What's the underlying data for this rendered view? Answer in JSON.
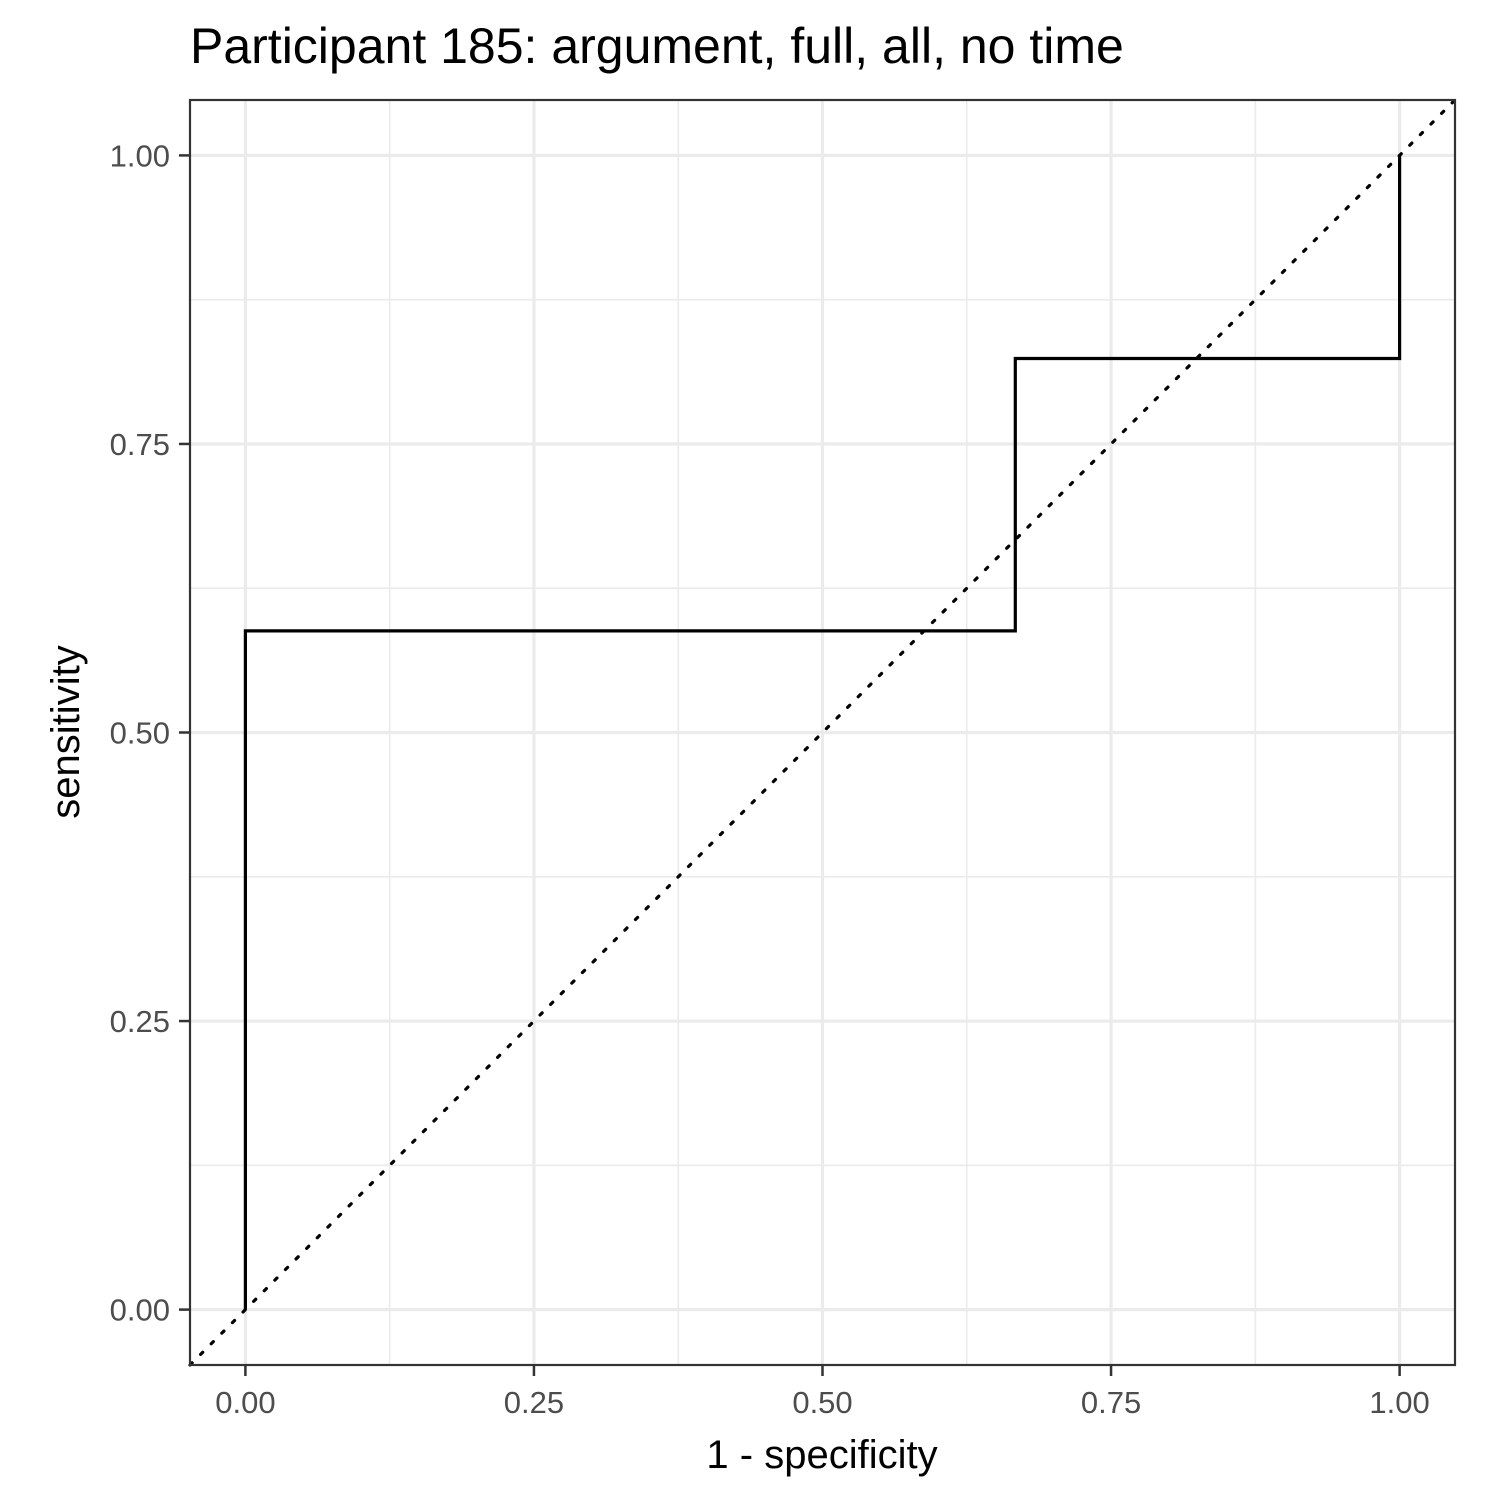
{
  "chart_data": {
    "type": "line",
    "title": "Participant 185: argument, full, all, no time",
    "xlabel": "1 - specificity",
    "ylabel": "sensitivity",
    "xlim": [
      -0.048,
      1.048
    ],
    "ylim": [
      -0.048,
      1.048
    ],
    "x_ticks": [
      0,
      0.25,
      0.5,
      0.75,
      1
    ],
    "x_tick_labels": [
      "0.00",
      "0.25",
      "0.50",
      "0.75",
      "1.00"
    ],
    "y_ticks": [
      0,
      0.25,
      0.5,
      0.75,
      1
    ],
    "y_tick_labels": [
      "0.00",
      "0.25",
      "0.50",
      "0.75",
      "1.00"
    ],
    "grid": true,
    "series": [
      {
        "style": "solid",
        "x": [
          0,
          0,
          0.667,
          0.667,
          1,
          1
        ],
        "y": [
          0,
          0.588,
          0.588,
          0.824,
          0.824,
          1
        ]
      }
    ],
    "reference_line": {
      "style": "dotted",
      "x": [
        -0.048,
        1.048
      ],
      "y": [
        -0.048,
        1.048
      ]
    }
  }
}
